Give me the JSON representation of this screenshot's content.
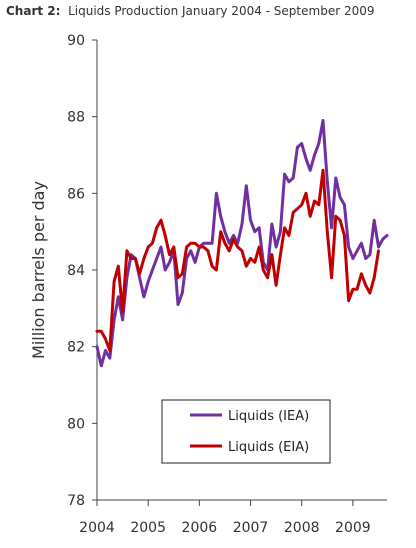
{
  "chart_data": {
    "type": "line",
    "title_label": "Chart 2:",
    "title": "Liquids Production January 2004 - September 2009",
    "ylabel": "Million barrels per day",
    "xlabel": "",
    "ylim": [
      78,
      90
    ],
    "yticks": [
      78,
      80,
      82,
      84,
      86,
      88,
      90
    ],
    "xlim": [
      "2004-01",
      "2009-09"
    ],
    "xtick_labels": [
      "2004",
      "2005",
      "2006",
      "2007",
      "2008",
      "2009"
    ],
    "grid": false,
    "legend_position": "bottom-center",
    "x": [
      "2004-01",
      "2004-02",
      "2004-03",
      "2004-04",
      "2004-05",
      "2004-06",
      "2004-07",
      "2004-08",
      "2004-09",
      "2004-10",
      "2004-11",
      "2004-12",
      "2005-01",
      "2005-02",
      "2005-03",
      "2005-04",
      "2005-05",
      "2005-06",
      "2005-07",
      "2005-08",
      "2005-09",
      "2005-10",
      "2005-11",
      "2005-12",
      "2006-01",
      "2006-02",
      "2006-03",
      "2006-04",
      "2006-05",
      "2006-06",
      "2006-07",
      "2006-08",
      "2006-09",
      "2006-10",
      "2006-11",
      "2006-12",
      "2007-01",
      "2007-02",
      "2007-03",
      "2007-04",
      "2007-05",
      "2007-06",
      "2007-07",
      "2007-08",
      "2007-09",
      "2007-10",
      "2007-11",
      "2007-12",
      "2008-01",
      "2008-02",
      "2008-03",
      "2008-04",
      "2008-05",
      "2008-06",
      "2008-07",
      "2008-08",
      "2008-09",
      "2008-10",
      "2008-11",
      "2008-12",
      "2009-01",
      "2009-02",
      "2009-03",
      "2009-04",
      "2009-05",
      "2009-06",
      "2009-07",
      "2009-08",
      "2009-09"
    ],
    "series": [
      {
        "name": "Liquids (IEA)",
        "color": "#7030a0",
        "values": [
          82.0,
          81.5,
          81.9,
          81.7,
          82.7,
          83.3,
          82.7,
          83.8,
          84.4,
          84.3,
          83.8,
          83.3,
          83.7,
          84.0,
          84.3,
          84.6,
          84.0,
          84.2,
          84.5,
          83.1,
          83.4,
          84.3,
          84.5,
          84.2,
          84.6,
          84.7,
          84.7,
          84.7,
          86.0,
          85.4,
          85.0,
          84.7,
          84.9,
          84.7,
          85.2,
          86.2,
          85.3,
          85.0,
          85.1,
          84.2,
          84.0,
          85.2,
          84.6,
          85.0,
          86.5,
          86.3,
          86.4,
          87.2,
          87.3,
          86.9,
          86.6,
          87.0,
          87.3,
          87.9,
          86.3,
          85.1,
          86.4,
          85.9,
          85.7,
          84.6,
          84.3,
          84.5,
          84.7,
          84.3,
          84.4,
          85.3,
          84.6,
          84.8,
          84.9
        ]
      },
      {
        "name": "Liquids (EIA)",
        "color": "#c00000",
        "values": [
          82.4,
          82.4,
          82.2,
          81.9,
          83.7,
          84.1,
          82.9,
          84.5,
          84.3,
          84.3,
          83.9,
          84.3,
          84.6,
          84.7,
          85.1,
          85.3,
          84.9,
          84.4,
          84.6,
          83.8,
          83.9,
          84.6,
          84.7,
          84.7,
          84.6,
          84.6,
          84.5,
          84.1,
          84.0,
          85.0,
          84.7,
          84.5,
          84.8,
          84.6,
          84.5,
          84.1,
          84.3,
          84.2,
          84.6,
          84.0,
          83.8,
          84.4,
          83.6,
          84.4,
          85.1,
          84.9,
          85.5,
          85.6,
          85.7,
          86.0,
          85.4,
          85.8,
          85.7,
          86.6,
          85.0,
          83.8,
          85.4,
          85.3,
          84.9,
          83.2,
          83.5,
          83.5,
          83.9,
          83.6,
          83.4,
          83.8,
          84.5,
          null,
          null
        ]
      }
    ]
  }
}
